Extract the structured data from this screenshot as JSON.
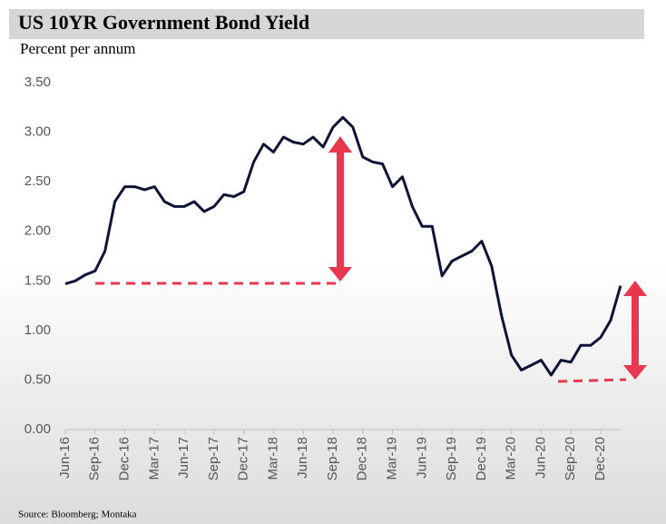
{
  "chart_data": {
    "type": "line",
    "title": "US 10YR Government Bond Yield",
    "subtitle": "Percent per annum",
    "source": "Source: Bloomberg; Montaka",
    "color": "#0f1436",
    "categories": [
      "Jun-16",
      null,
      null,
      "Sep-16",
      null,
      null,
      "Dec-16",
      null,
      null,
      "Mar-17",
      null,
      null,
      "Jun-17",
      null,
      null,
      "Sep-17",
      null,
      null,
      "Dec-17",
      null,
      null,
      "Mar-18",
      null,
      null,
      "Jun-18",
      null,
      null,
      "Sep-18",
      null,
      null,
      "Dec-18",
      null,
      null,
      "Mar-19",
      null,
      null,
      "Jun-19",
      null,
      null,
      "Sep-19",
      null,
      null,
      "Dec-19",
      null,
      null,
      "Mar-20",
      null,
      null,
      "Jun-20",
      null,
      null,
      "Sep-20",
      null,
      null,
      "Dec-20",
      null,
      null
    ],
    "values": [
      1.47,
      1.5,
      1.56,
      1.6,
      1.8,
      2.3,
      2.45,
      2.45,
      2.42,
      2.45,
      2.3,
      2.25,
      2.25,
      2.3,
      2.2,
      2.25,
      2.37,
      2.35,
      2.4,
      2.7,
      2.88,
      2.8,
      2.95,
      2.9,
      2.88,
      2.95,
      2.85,
      3.05,
      3.15,
      3.05,
      2.75,
      2.7,
      2.68,
      2.45,
      2.55,
      2.25,
      2.05,
      2.05,
      1.55,
      1.7,
      1.75,
      1.8,
      1.9,
      1.65,
      1.15,
      0.75,
      0.6,
      0.65,
      0.7,
      0.55,
      0.7,
      0.68,
      0.85,
      0.85,
      0.93,
      1.1,
      1.45
    ],
    "ylim": [
      0,
      3.5
    ],
    "yticks": [
      {
        "value": 0,
        "label": "0.00"
      },
      {
        "value": 0.5,
        "label": "0.50"
      },
      {
        "value": 1,
        "label": "1.00"
      },
      {
        "value": 1.5,
        "label": "1.50"
      },
      {
        "value": 2,
        "label": "2.00"
      },
      {
        "value": 2.5,
        "label": "2.50"
      },
      {
        "value": 3,
        "label": "3.00"
      },
      {
        "value": 3.5,
        "label": "3.50"
      }
    ],
    "grid": false
  }
}
